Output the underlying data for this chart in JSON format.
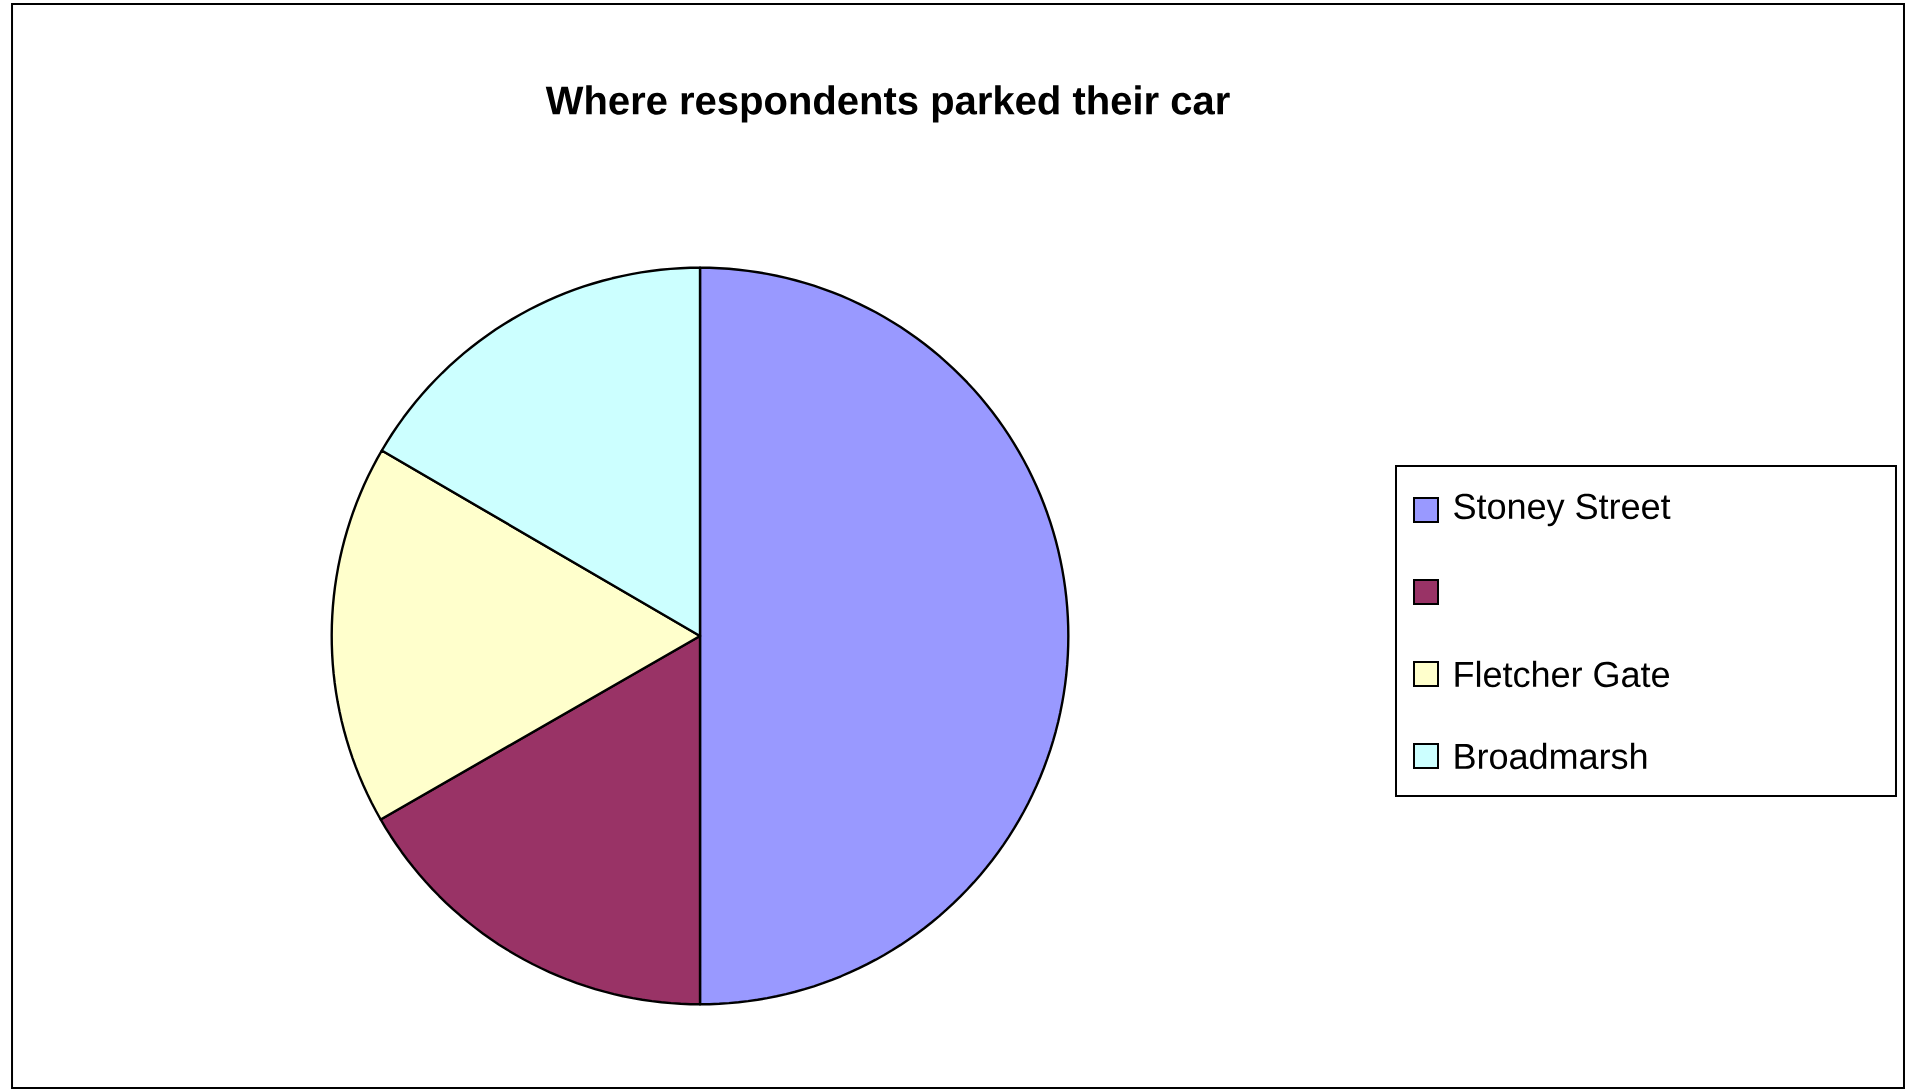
{
  "chart_data": {
    "type": "pie",
    "title": "Where respondents parked their car",
    "categories": [
      "Stoney Street",
      null,
      "Fletcher Gate",
      "Broadmarsh"
    ],
    "values": [
      50,
      16.7,
      16.7,
      16.6
    ],
    "colors": [
      "#9999ff",
      "#993366",
      "#ffffcc",
      "#ccffff"
    ],
    "legend": "right"
  }
}
